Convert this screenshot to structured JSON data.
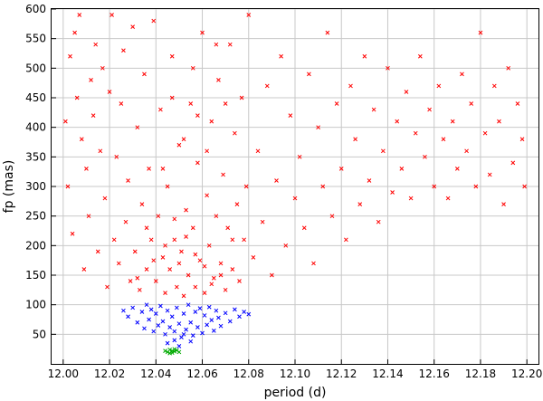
{
  "chart_data": {
    "type": "scatter",
    "title": "",
    "xlabel": "period (d)",
    "ylabel": "fp (mas)",
    "xlim": [
      11.995,
      12.205
    ],
    "ylim": [
      0,
      600
    ],
    "x_ticks": [
      12.0,
      12.02,
      12.04,
      12.06,
      12.08,
      12.1,
      12.12,
      12.14,
      12.16,
      12.18,
      12.2
    ],
    "x_tick_labels": [
      "12.00",
      "12.02",
      "12.04",
      "12.06",
      "12.08",
      "12.10",
      "12.12",
      "12.14",
      "12.16",
      "12.18",
      "12.20"
    ],
    "y_ticks": [
      50,
      100,
      150,
      200,
      250,
      300,
      350,
      400,
      450,
      500,
      550,
      600
    ],
    "y_tick_labels": [
      "50",
      "100",
      "150",
      "200",
      "250",
      "300",
      "350",
      "400",
      "450",
      "500",
      "550",
      "600"
    ],
    "grid": true,
    "legend": "none",
    "series": [
      {
        "color": "#ff0000",
        "marker": "x",
        "points": [
          [
            12.001,
            410
          ],
          [
            12.003,
            520
          ],
          [
            12.005,
            560
          ],
          [
            12.002,
            300
          ],
          [
            12.004,
            220
          ],
          [
            12.006,
            450
          ],
          [
            12.008,
            380
          ],
          [
            12.007,
            590
          ],
          [
            12.009,
            160
          ],
          [
            12.01,
            330
          ],
          [
            12.012,
            480
          ],
          [
            12.011,
            250
          ],
          [
            12.014,
            540
          ],
          [
            12.013,
            420
          ],
          [
            12.015,
            190
          ],
          [
            12.016,
            360
          ],
          [
            12.018,
            280
          ],
          [
            12.017,
            500
          ],
          [
            12.019,
            130
          ],
          [
            12.02,
            460
          ],
          [
            12.021,
            590
          ],
          [
            12.022,
            210
          ],
          [
            12.023,
            350
          ],
          [
            12.024,
            170
          ],
          [
            12.025,
            440
          ],
          [
            12.026,
            530
          ],
          [
            12.027,
            240
          ],
          [
            12.028,
            310
          ],
          [
            12.029,
            140
          ],
          [
            12.03,
            570
          ],
          [
            12.031,
            190
          ],
          [
            12.032,
            400
          ],
          [
            12.033,
            125
          ],
          [
            12.034,
            270
          ],
          [
            12.035,
            490
          ],
          [
            12.036,
            160
          ],
          [
            12.037,
            330
          ],
          [
            12.038,
            210
          ],
          [
            12.039,
            580
          ],
          [
            12.04,
            140
          ],
          [
            12.041,
            250
          ],
          [
            12.042,
            430
          ],
          [
            12.043,
            180
          ],
          [
            12.044,
            120
          ],
          [
            12.045,
            300
          ],
          [
            12.046,
            160
          ],
          [
            12.047,
            520
          ],
          [
            12.048,
            210
          ],
          [
            12.049,
            130
          ],
          [
            12.05,
            370
          ],
          [
            12.051,
            190
          ],
          [
            12.052,
            115
          ],
          [
            12.053,
            260
          ],
          [
            12.054,
            150
          ],
          [
            12.055,
            440
          ],
          [
            12.056,
            230
          ],
          [
            12.057,
            130
          ],
          [
            12.058,
            340
          ],
          [
            12.059,
            175
          ],
          [
            12.06,
            560
          ],
          [
            12.061,
            120
          ],
          [
            12.062,
            285
          ],
          [
            12.063,
            200
          ],
          [
            12.064,
            410
          ],
          [
            12.065,
            145
          ],
          [
            12.066,
            250
          ],
          [
            12.067,
            480
          ],
          [
            12.068,
            170
          ],
          [
            12.069,
            320
          ],
          [
            12.07,
            125
          ],
          [
            12.071,
            230
          ],
          [
            12.072,
            540
          ],
          [
            12.073,
            160
          ],
          [
            12.074,
            390
          ],
          [
            12.075,
            270
          ],
          [
            12.076,
            140
          ],
          [
            12.077,
            450
          ],
          [
            12.078,
            210
          ],
          [
            12.079,
            300
          ],
          [
            12.08,
            590
          ],
          [
            12.082,
            180
          ],
          [
            12.084,
            360
          ],
          [
            12.086,
            240
          ],
          [
            12.088,
            470
          ],
          [
            12.09,
            150
          ],
          [
            12.092,
            310
          ],
          [
            12.094,
            520
          ],
          [
            12.096,
            200
          ],
          [
            12.098,
            420
          ],
          [
            12.1,
            280
          ],
          [
            12.102,
            350
          ],
          [
            12.104,
            230
          ],
          [
            12.106,
            490
          ],
          [
            12.108,
            170
          ],
          [
            12.11,
            400
          ],
          [
            12.112,
            300
          ],
          [
            12.114,
            560
          ],
          [
            12.116,
            250
          ],
          [
            12.118,
            440
          ],
          [
            12.12,
            330
          ],
          [
            12.122,
            210
          ],
          [
            12.124,
            470
          ],
          [
            12.126,
            380
          ],
          [
            12.128,
            270
          ],
          [
            12.13,
            520
          ],
          [
            12.132,
            310
          ],
          [
            12.134,
            430
          ],
          [
            12.136,
            240
          ],
          [
            12.138,
            360
          ],
          [
            12.14,
            500
          ],
          [
            12.142,
            290
          ],
          [
            12.144,
            410
          ],
          [
            12.146,
            330
          ],
          [
            12.148,
            460
          ],
          [
            12.15,
            280
          ],
          [
            12.152,
            390
          ],
          [
            12.154,
            520
          ],
          [
            12.156,
            350
          ],
          [
            12.158,
            430
          ],
          [
            12.16,
            300
          ],
          [
            12.162,
            470
          ],
          [
            12.164,
            380
          ],
          [
            12.166,
            280
          ],
          [
            12.168,
            410
          ],
          [
            12.17,
            330
          ],
          [
            12.172,
            490
          ],
          [
            12.174,
            360
          ],
          [
            12.176,
            440
          ],
          [
            12.178,
            300
          ],
          [
            12.18,
            560
          ],
          [
            12.182,
            390
          ],
          [
            12.184,
            320
          ],
          [
            12.186,
            470
          ],
          [
            12.188,
            410
          ],
          [
            12.19,
            270
          ],
          [
            12.192,
            500
          ],
          [
            12.194,
            340
          ],
          [
            12.196,
            440
          ],
          [
            12.198,
            380
          ],
          [
            12.199,
            300
          ],
          [
            12.043,
            330
          ],
          [
            12.047,
            450
          ],
          [
            12.052,
            380
          ],
          [
            12.056,
            500
          ],
          [
            12.058,
            420
          ],
          [
            12.062,
            360
          ],
          [
            12.066,
            540
          ],
          [
            12.07,
            440
          ],
          [
            12.053,
            215
          ],
          [
            12.048,
            245
          ],
          [
            12.044,
            200
          ],
          [
            12.057,
            185
          ],
          [
            12.061,
            165
          ],
          [
            12.039,
            175
          ],
          [
            12.036,
            230
          ],
          [
            12.032,
            145
          ],
          [
            12.064,
            135
          ],
          [
            12.068,
            150
          ],
          [
            12.073,
            210
          ],
          [
            12.05,
            170
          ]
        ]
      },
      {
        "color": "#0000ff",
        "marker": "x",
        "points": [
          [
            12.026,
            90
          ],
          [
            12.028,
            80
          ],
          [
            12.03,
            95
          ],
          [
            12.032,
            70
          ],
          [
            12.034,
            88
          ],
          [
            12.035,
            60
          ],
          [
            12.036,
            100
          ],
          [
            12.037,
            75
          ],
          [
            12.038,
            92
          ],
          [
            12.039,
            55
          ],
          [
            12.04,
            85
          ],
          [
            12.041,
            65
          ],
          [
            12.042,
            98
          ],
          [
            12.043,
            72
          ],
          [
            12.044,
            50
          ],
          [
            12.045,
            90
          ],
          [
            12.046,
            62
          ],
          [
            12.047,
            80
          ],
          [
            12.048,
            40
          ],
          [
            12.049,
            95
          ],
          [
            12.05,
            68
          ],
          [
            12.051,
            45
          ],
          [
            12.052,
            85
          ],
          [
            12.053,
            58
          ],
          [
            12.054,
            100
          ],
          [
            12.055,
            70
          ],
          [
            12.056,
            48
          ],
          [
            12.057,
            88
          ],
          [
            12.058,
            62
          ],
          [
            12.059,
            94
          ],
          [
            12.06,
            52
          ],
          [
            12.061,
            82
          ],
          [
            12.062,
            66
          ],
          [
            12.063,
            96
          ],
          [
            12.064,
            74
          ],
          [
            12.065,
            56
          ],
          [
            12.066,
            90
          ],
          [
            12.067,
            78
          ],
          [
            12.068,
            64
          ],
          [
            12.07,
            86
          ],
          [
            12.072,
            72
          ],
          [
            12.074,
            92
          ],
          [
            12.076,
            80
          ],
          [
            12.078,
            88
          ],
          [
            12.08,
            84
          ],
          [
            12.045,
            35
          ],
          [
            12.05,
            30
          ],
          [
            12.055,
            38
          ],
          [
            12.048,
            55
          ],
          [
            12.052,
            50
          ]
        ]
      },
      {
        "color": "#00aa00",
        "marker": "x",
        "points": [
          [
            12.044,
            22
          ],
          [
            12.045,
            20
          ],
          [
            12.046,
            24
          ],
          [
            12.047,
            19
          ],
          [
            12.048,
            21
          ],
          [
            12.049,
            23
          ],
          [
            12.05,
            20
          ],
          [
            12.046,
            18
          ],
          [
            12.048,
            25
          ],
          [
            12.047,
            22
          ]
        ]
      }
    ]
  }
}
